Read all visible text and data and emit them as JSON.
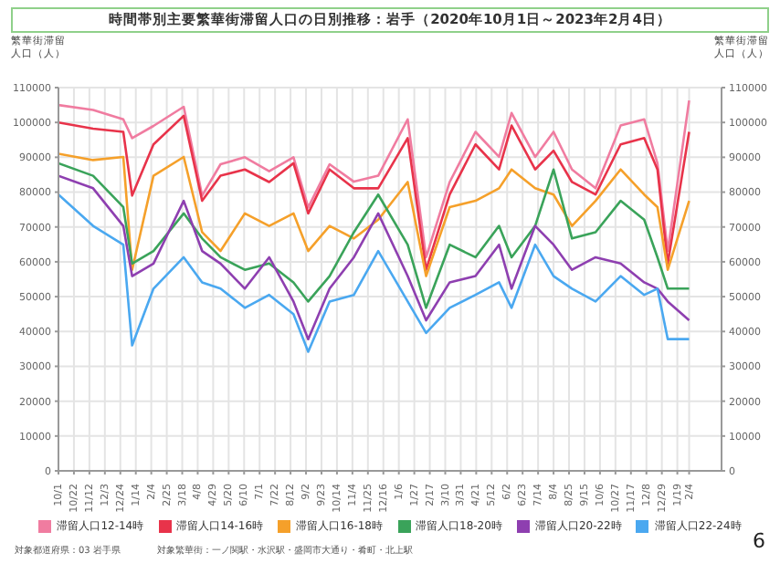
{
  "chart_data": {
    "type": "line",
    "title": "時間帯別主要繁華街滞留人口の日別推移：岩手（2020年10月1日～2023年2月4日）",
    "ylabel": "繁華街滞留人口（人）",
    "y2label": "繁華街滞留人口（人）",
    "x": [
      "2020-10-01",
      "2020-11-17",
      "2020-12-28",
      "2021-01-09",
      "2021-02-07",
      "2021-03-20",
      "2021-04-14",
      "2021-05-09",
      "2021-06-11",
      "2021-07-14",
      "2021-08-16",
      "2021-09-05",
      "2021-10-04",
      "2021-11-06",
      "2021-12-09",
      "2022-01-18",
      "2022-02-12",
      "2022-03-16",
      "2022-04-20",
      "2022-05-22",
      "2022-06-08",
      "2022-07-10",
      "2022-08-04",
      "2022-08-29",
      "2022-09-30",
      "2022-11-03",
      "2022-12-05",
      "2022-12-23",
      "2023-01-06",
      "2023-02-04"
    ],
    "series": [
      {
        "name": "滞留人口12-14時",
        "color": "#f07ca0",
        "values": [
          105000,
          103600,
          100900,
          95500,
          99000,
          104500,
          79000,
          88000,
          90000,
          86000,
          90000,
          75600,
          88000,
          83000,
          84700,
          100900,
          61300,
          82900,
          97300,
          90100,
          102700,
          90100,
          97300,
          86500,
          81100,
          99100,
          100900,
          88300,
          63100,
          106300
        ]
      },
      {
        "name": "滞留人口14-16時",
        "color": "#e8334a",
        "values": [
          100000,
          98200,
          97300,
          79000,
          93700,
          101900,
          77500,
          84700,
          86500,
          82900,
          88300,
          73900,
          86500,
          81100,
          81100,
          95500,
          57700,
          79300,
          93700,
          86500,
          99100,
          86500,
          91900,
          82900,
          79300,
          93700,
          95500,
          86500,
          59500,
          97300
        ]
      },
      {
        "name": "滞留人口16-18時",
        "color": "#f5a02a",
        "values": [
          91000,
          89200,
          90100,
          57700,
          84700,
          90100,
          68500,
          63100,
          73900,
          70300,
          73900,
          63100,
          70300,
          66700,
          72100,
          82900,
          55900,
          75700,
          77500,
          81100,
          86500,
          81100,
          79300,
          70300,
          77500,
          86500,
          79300,
          75700,
          57700,
          77500
        ]
      },
      {
        "name": "滞留人口18-20時",
        "color": "#3aa35a",
        "values": [
          88300,
          84700,
          75700,
          59500,
          63100,
          73900,
          66700,
          61300,
          57700,
          59500,
          54100,
          48600,
          55900,
          68500,
          79300,
          64900,
          46800,
          64900,
          61300,
          70300,
          61300,
          70300,
          86500,
          66700,
          68500,
          77500,
          72100,
          61300,
          52300,
          52300
        ]
      },
      {
        "name": "滞留人口20-22時",
        "color": "#8e3fb0",
        "values": [
          84700,
          81100,
          70300,
          55900,
          59500,
          77500,
          63100,
          59500,
          52300,
          61300,
          48600,
          37800,
          52300,
          61300,
          73900,
          55900,
          43200,
          54100,
          55900,
          64900,
          52300,
          70300,
          64900,
          57700,
          61300,
          59500,
          54100,
          52300,
          48600,
          43200
        ]
      },
      {
        "name": "滞留人口22-24時",
        "color": "#4aa8f0",
        "values": [
          79300,
          70300,
          64900,
          36000,
          52300,
          61300,
          54100,
          52300,
          46800,
          50500,
          45000,
          34200,
          48600,
          50500,
          63100,
          48600,
          39600,
          46800,
          50500,
          54100,
          46800,
          64900,
          55900,
          52300,
          48600,
          55900,
          50500,
          52300,
          37800,
          37800
        ]
      }
    ],
    "xlim": [
      "2020-10-01",
      "2023-03-20"
    ],
    "xticks": [
      {
        "value": "2020-10-01",
        "label": "10/1"
      },
      {
        "value": "2020-10-22",
        "label": "10/22"
      },
      {
        "value": "2020-11-12",
        "label": "11/12"
      },
      {
        "value": "2020-12-03",
        "label": "12/3"
      },
      {
        "value": "2020-12-24",
        "label": "12/24"
      },
      {
        "value": "2021-01-14",
        "label": "1/14"
      },
      {
        "value": "2021-02-04",
        "label": "2/4"
      },
      {
        "value": "2021-02-25",
        "label": "2/25"
      },
      {
        "value": "2021-03-18",
        "label": "3/18"
      },
      {
        "value": "2021-04-08",
        "label": "4/8"
      },
      {
        "value": "2021-04-29",
        "label": "4/29"
      },
      {
        "value": "2021-05-20",
        "label": "5/20"
      },
      {
        "value": "2021-06-10",
        "label": "6/10"
      },
      {
        "value": "2021-07-01",
        "label": "7/1"
      },
      {
        "value": "2021-07-22",
        "label": "7/22"
      },
      {
        "value": "2021-08-12",
        "label": "8/12"
      },
      {
        "value": "2021-09-02",
        "label": "9/2"
      },
      {
        "value": "2021-09-23",
        "label": "9/23"
      },
      {
        "value": "2021-10-14",
        "label": "10/14"
      },
      {
        "value": "2021-11-04",
        "label": "11/4"
      },
      {
        "value": "2021-11-25",
        "label": "11/25"
      },
      {
        "value": "2021-12-16",
        "label": "12/16"
      },
      {
        "value": "2022-01-06",
        "label": "1/6"
      },
      {
        "value": "2022-01-27",
        "label": "1/27"
      },
      {
        "value": "2022-02-17",
        "label": "2/17"
      },
      {
        "value": "2022-03-10",
        "label": "3/10"
      },
      {
        "value": "2022-03-31",
        "label": "3/31"
      },
      {
        "value": "2022-04-21",
        "label": "4/21"
      },
      {
        "value": "2022-05-12",
        "label": "5/12"
      },
      {
        "value": "2022-06-02",
        "label": "6/2"
      },
      {
        "value": "2022-06-23",
        "label": "6/23"
      },
      {
        "value": "2022-07-14",
        "label": "7/14"
      },
      {
        "value": "2022-08-04",
        "label": "8/4"
      },
      {
        "value": "2022-08-25",
        "label": "8/25"
      },
      {
        "value": "2022-09-15",
        "label": "9/15"
      },
      {
        "value": "2022-10-06",
        "label": "10/6"
      },
      {
        "value": "2022-10-27",
        "label": "10/27"
      },
      {
        "value": "2022-11-17",
        "label": "11/17"
      },
      {
        "value": "2022-12-08",
        "label": "12/8"
      },
      {
        "value": "2022-12-29",
        "label": "12/29"
      },
      {
        "value": "2023-01-19",
        "label": "1/19"
      },
      {
        "value": "2023-02-04",
        "label": "2/4"
      }
    ],
    "ylim": [
      0,
      110000
    ],
    "yticks": [
      0,
      10000,
      20000,
      30000,
      40000,
      50000,
      60000,
      70000,
      80000,
      90000,
      100000,
      110000
    ],
    "y2lim": [
      0,
      110000
    ],
    "y2ticks": [
      0,
      10000,
      20000,
      30000,
      40000,
      50000,
      60000,
      70000,
      80000,
      90000,
      100000,
      110000
    ],
    "grid": true,
    "legend": "bottom",
    "marker": "none",
    "line_style": "solid",
    "annotations": [
      "対象都道府県：03 岩手県",
      "対象繁華街：一ノ関駅・水沢駅・盛岡市大通り・肴町・北上駅",
      "6"
    ]
  }
}
